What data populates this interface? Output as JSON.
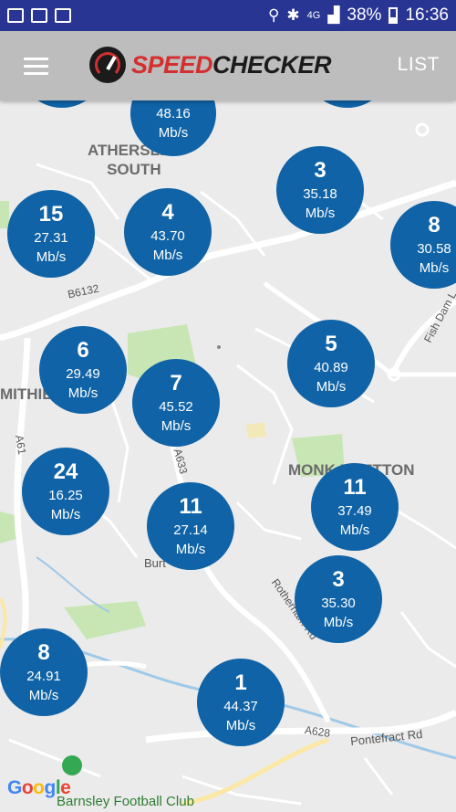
{
  "status_bar": {
    "battery": "38%",
    "time": "16:36",
    "network": "4G"
  },
  "app_bar": {
    "logo_part1": "SPEED",
    "logo_part2": "CHECKER",
    "list_label": "LIST",
    "menu_icon": "hamburger-menu-icon"
  },
  "map": {
    "place_labels": [
      "ATHERSLEY\nSOUTH",
      "MONK BRETTON",
      "MITHIE",
      "Burt"
    ],
    "road_labels": [
      "B6132",
      "A61",
      "A633",
      "Rotherham Rd",
      "Fish Dam L",
      "A628",
      "Pontefract Rd"
    ],
    "poi": "Barnsley Football Club",
    "attribution": "Google"
  },
  "markers": [
    {
      "count": "",
      "speed": "48.16",
      "unit": "Mb/s"
    },
    {
      "count": "15",
      "speed": "27.31",
      "unit": "Mb/s"
    },
    {
      "count": "4",
      "speed": "43.70",
      "unit": "Mb/s"
    },
    {
      "count": "3",
      "speed": "35.18",
      "unit": "Mb/s"
    },
    {
      "count": "8",
      "speed": "30.58",
      "unit": "Mb/s"
    },
    {
      "count": "6",
      "speed": "29.49",
      "unit": "Mb/s"
    },
    {
      "count": "7",
      "speed": "45.52",
      "unit": "Mb/s"
    },
    {
      "count": "5",
      "speed": "40.89",
      "unit": "Mb/s"
    },
    {
      "count": "24",
      "speed": "16.25",
      "unit": "Mb/s"
    },
    {
      "count": "11",
      "speed": "27.14",
      "unit": "Mb/s"
    },
    {
      "count": "11",
      "speed": "37.49",
      "unit": "Mb/s"
    },
    {
      "count": "3",
      "speed": "35.30",
      "unit": "Mb/s"
    },
    {
      "count": "8",
      "speed": "24.91",
      "unit": "Mb/s"
    },
    {
      "count": "1",
      "speed": "44.37",
      "unit": "Mb/s"
    }
  ],
  "colors": {
    "status_bar": "#283593",
    "app_bar": "#bdbdbd",
    "marker": "#0f63a6",
    "logo_red": "#d32f2f"
  }
}
